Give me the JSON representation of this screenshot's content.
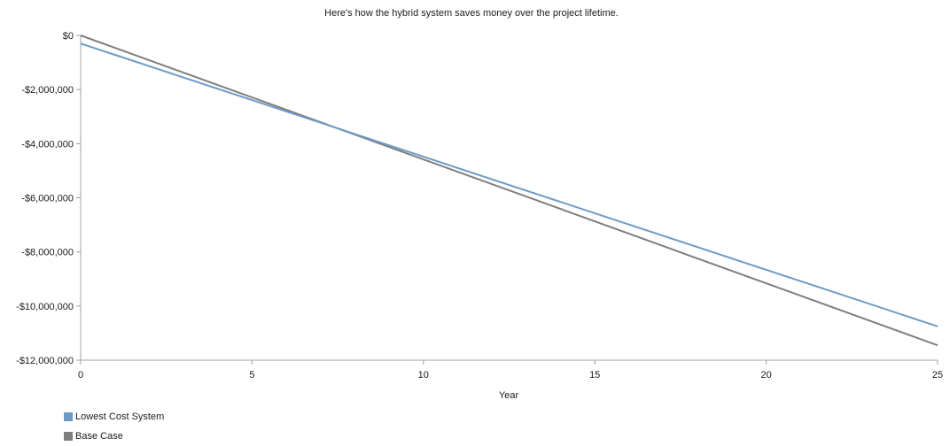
{
  "colors": {
    "lowest_cost": "#6e9bc5",
    "base_case": "#7f7f7f"
  },
  "chart_data": {
    "type": "line",
    "title": "Here's how the hybrid system saves money over the project lifetime.",
    "xlabel": "Year",
    "ylabel": "",
    "xlim": [
      0,
      25
    ],
    "ylim": [
      -12000000,
      0
    ],
    "x_ticks": [
      0,
      5,
      10,
      15,
      20,
      25
    ],
    "y_ticks": [
      0,
      -2000000,
      -4000000,
      -6000000,
      -8000000,
      -10000000,
      -12000000
    ],
    "y_tick_labels": [
      "$0",
      "-$2,000,000",
      "-$4,000,000",
      "-$6,000,000",
      "-$8,000,000",
      "-$10,000,000",
      "-$12,000,000"
    ],
    "grid": false,
    "legend_position": "bottom-left",
    "series": [
      {
        "name": "Lowest Cost System",
        "x": [
          0,
          25
        ],
        "values": [
          -300000,
          -10750000
        ]
      },
      {
        "name": "Base Case",
        "x": [
          0,
          25
        ],
        "values": [
          0,
          -11450000
        ]
      }
    ]
  }
}
